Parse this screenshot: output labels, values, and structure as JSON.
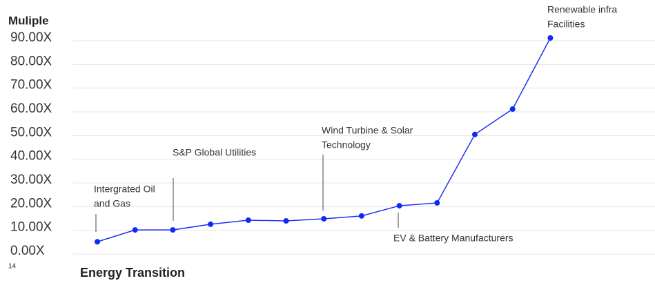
{
  "chart_data": {
    "type": "line",
    "y_label": "Muliple",
    "x_label": "Energy Transition",
    "page_number": "14",
    "categories": [
      null,
      null,
      null,
      null,
      null,
      null,
      null,
      null,
      null,
      null,
      null,
      null,
      null
    ],
    "series": [
      {
        "name": null,
        "color": "#1f2ef0",
        "values": [
          4,
          9,
          9,
          11.4,
          13.1,
          12.8,
          13.7,
          14.9,
          19.2,
          20.4,
          49.3,
          60,
          90
        ]
      }
    ],
    "ylim": [
      0,
      90
    ],
    "yticks": [
      {
        "value": 0,
        "label": "0.00X"
      },
      {
        "value": 10,
        "label": "10.00X"
      },
      {
        "value": 20,
        "label": "20.00X"
      },
      {
        "value": 30,
        "label": "30.00X"
      },
      {
        "value": 40,
        "label": "40.00X"
      },
      {
        "value": 50,
        "label": "50.00X"
      },
      {
        "value": 60,
        "label": "60.00X"
      },
      {
        "value": 70,
        "label": "70.00X"
      },
      {
        "value": 80,
        "label": "80.00X"
      },
      {
        "value": 90,
        "label": "90.00X"
      }
    ],
    "grid": true,
    "annotations": [
      {
        "lines": [
          "Intergrated Oil",
          "and Gas"
        ]
      },
      {
        "lines": [
          "S&P Global Utilities"
        ]
      },
      {
        "lines": [
          "Wind Turbine & Solar",
          "Technology"
        ]
      },
      {
        "lines": [
          "EV & Battery Manufacturers"
        ]
      },
      {
        "lines": [
          "Renewable infra",
          "Facilities"
        ]
      }
    ]
  }
}
